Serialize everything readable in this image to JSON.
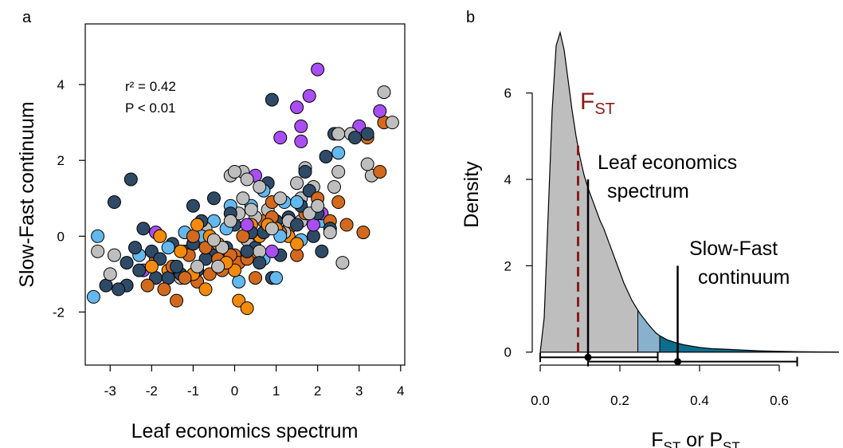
{
  "colors": {
    "dark_blue": "#2e4a67",
    "light_blue": "#63b8ee",
    "orange_dark": "#d2691e",
    "orange": "#f28a0c",
    "grey": "#bebebe",
    "purple": "#a84ef2",
    "density_grey": "#bebebe",
    "density_lightblue": "#8ab1cc",
    "density_teal": "#0e6c8c",
    "fst_red": "#8b1a1a"
  },
  "chart_data": [
    {
      "type": "scatter",
      "panel_label": "a",
      "xlabel": "Leaf economics spectrum",
      "ylabel": "Slow-Fast continuum",
      "xlim": [
        -3.6,
        4.1
      ],
      "ylim": [
        -3.4,
        5.6
      ],
      "xticks": [
        -3,
        -2,
        -1,
        0,
        1,
        2,
        3,
        4
      ],
      "yticks": [
        -2,
        0,
        2,
        4
      ],
      "annotations": [
        "r² = 0.42",
        "P < 0.01"
      ],
      "grid": false,
      "series": [
        {
          "color": "dark_blue",
          "points": [
            [
              -3.1,
              -1.3
            ],
            [
              -2.8,
              -1.4
            ],
            [
              -2.6,
              -1.3
            ],
            [
              -2.6,
              -0.7
            ],
            [
              -2.5,
              1.5
            ],
            [
              -2.9,
              0.9
            ],
            [
              -2.4,
              -0.3
            ],
            [
              -2.2,
              0.2
            ],
            [
              -1.9,
              -1.1
            ],
            [
              -1.8,
              -0.6
            ],
            [
              -1.6,
              -1.1
            ],
            [
              -1.5,
              -0.2
            ],
            [
              -1.4,
              -0.8
            ],
            [
              -1.2,
              -0.4
            ],
            [
              -1.0,
              -0.2
            ],
            [
              -1.0,
              0.8
            ],
            [
              -0.9,
              -0.9
            ],
            [
              -0.8,
              0.4
            ],
            [
              -0.7,
              -0.6
            ],
            [
              -0.5,
              -0.5
            ],
            [
              -0.5,
              1.0
            ],
            [
              -0.4,
              -0.8
            ],
            [
              -0.2,
              -0.3
            ],
            [
              -0.1,
              0.6
            ],
            [
              0.0,
              0.3
            ],
            [
              0.3,
              -0.4
            ],
            [
              0.4,
              0.1
            ],
            [
              0.5,
              -0.3
            ],
            [
              0.6,
              -0.7
            ],
            [
              0.7,
              0.1
            ],
            [
              0.8,
              1.4
            ],
            [
              0.9,
              3.6
            ],
            [
              0.9,
              -1.1
            ],
            [
              1.0,
              0.4
            ],
            [
              1.1,
              -0.5
            ],
            [
              1.3,
              0.5
            ],
            [
              1.5,
              0.3
            ],
            [
              1.6,
              0.8
            ],
            [
              1.7,
              1.7
            ],
            [
              1.8,
              1.2
            ],
            [
              2.0,
              0.6
            ],
            [
              2.1,
              -0.4
            ],
            [
              2.2,
              2.1
            ],
            [
              2.4,
              2.7
            ],
            [
              2.5,
              2.7
            ],
            [
              2.3,
              0.2
            ],
            [
              2.9,
              2.6
            ],
            [
              3.2,
              2.7
            ],
            [
              -1.3,
              -1.0
            ],
            [
              -0.3,
              -0.6
            ],
            [
              -2.3,
              -0.9
            ],
            [
              -2.0,
              -0.4
            ],
            [
              1.9,
              0.0
            ]
          ]
        },
        {
          "color": "light_blue",
          "points": [
            [
              -3.4,
              -1.6
            ],
            [
              -3.3,
              0.0
            ],
            [
              -2.3,
              -0.5
            ],
            [
              -1.6,
              -0.3
            ],
            [
              -1.2,
              0.1
            ],
            [
              -0.8,
              0.0
            ],
            [
              -0.5,
              0.4
            ],
            [
              -0.2,
              0.2
            ],
            [
              0.1,
              -1.2
            ],
            [
              0.4,
              0.8
            ],
            [
              0.7,
              1.2
            ],
            [
              0.7,
              -0.6
            ],
            [
              1.0,
              -1.1
            ],
            [
              1.1,
              0.0
            ],
            [
              1.2,
              0.9
            ],
            [
              1.5,
              0.9
            ],
            [
              1.6,
              -0.1
            ],
            [
              2.1,
              0.4
            ],
            [
              2.5,
              2.2
            ],
            [
              -0.1,
              0.8
            ]
          ]
        },
        {
          "color": "orange_dark",
          "points": [
            [
              -2.1,
              -1.3
            ],
            [
              -1.9,
              -0.6
            ],
            [
              -1.7,
              -1.4
            ],
            [
              -1.5,
              -0.8
            ],
            [
              -1.4,
              -1.7
            ],
            [
              -1.2,
              -1.1
            ],
            [
              -1.1,
              -0.5
            ],
            [
              -0.9,
              -1.2
            ],
            [
              -0.7,
              -0.3
            ],
            [
              -0.6,
              -1.0
            ],
            [
              -0.3,
              -0.9
            ],
            [
              -0.1,
              -0.5
            ],
            [
              0.1,
              -0.7
            ],
            [
              0.3,
              -0.6
            ],
            [
              0.5,
              -1.1
            ],
            [
              0.7,
              0.4
            ],
            [
              0.9,
              0.5
            ],
            [
              1.1,
              0.1
            ],
            [
              1.3,
              0.2
            ],
            [
              1.5,
              -0.5
            ],
            [
              1.7,
              0.6
            ],
            [
              2.0,
              1.0
            ],
            [
              2.3,
              0.4
            ],
            [
              2.5,
              0.9
            ],
            [
              2.7,
              0.3
            ],
            [
              3.1,
              0.1
            ],
            [
              3.2,
              2.6
            ],
            [
              3.5,
              1.7
            ],
            [
              3.6,
              3.0
            ],
            [
              0.0,
              -0.5
            ],
            [
              -0.4,
              -0.6
            ],
            [
              0.9,
              0.9
            ],
            [
              -1.0,
              0.0
            ],
            [
              0.2,
              0.0
            ]
          ]
        },
        {
          "color": "orange",
          "points": [
            [
              -2.0,
              -0.8
            ],
            [
              -1.8,
              0.0
            ],
            [
              -1.6,
              -0.9
            ],
            [
              -1.3,
              -0.4
            ],
            [
              -1.0,
              -1.0
            ],
            [
              -0.7,
              -1.4
            ],
            [
              -0.6,
              0.0
            ],
            [
              -0.4,
              -0.2
            ],
            [
              -0.2,
              -0.7
            ],
            [
              0.0,
              -0.9
            ],
            [
              0.1,
              -1.7
            ],
            [
              0.3,
              -1.9
            ],
            [
              0.4,
              0.3
            ],
            [
              0.5,
              -0.4
            ],
            [
              0.8,
              0.3
            ],
            [
              1.0,
              0.2
            ],
            [
              1.3,
              0.0
            ],
            [
              1.5,
              -0.2
            ],
            [
              0.6,
              0.0
            ],
            [
              -0.9,
              0.3
            ]
          ]
        },
        {
          "color": "grey",
          "points": [
            [
              -3.3,
              -0.4
            ],
            [
              -3.0,
              -1.0
            ],
            [
              -2.9,
              -0.5
            ],
            [
              -1.3,
              -1.1
            ],
            [
              -0.9,
              -0.8
            ],
            [
              -0.7,
              0.2
            ],
            [
              -0.5,
              -0.1
            ],
            [
              -0.3,
              -0.3
            ],
            [
              -0.1,
              1.6
            ],
            [
              -0.1,
              0.4
            ],
            [
              0.0,
              1.7
            ],
            [
              0.2,
              1.7
            ],
            [
              0.2,
              1.0
            ],
            [
              0.3,
              1.5
            ],
            [
              0.3,
              -0.1
            ],
            [
              0.4,
              0.7
            ],
            [
              0.5,
              0.5
            ],
            [
              0.6,
              1.3
            ],
            [
              0.6,
              -0.4
            ],
            [
              0.8,
              0.7
            ],
            [
              0.9,
              0.2
            ],
            [
              1.1,
              1.0
            ],
            [
              1.2,
              0.1
            ],
            [
              1.5,
              1.4
            ],
            [
              1.6,
              1.0
            ],
            [
              1.7,
              1.8
            ],
            [
              1.8,
              0.6
            ],
            [
              1.9,
              1.3
            ],
            [
              2.0,
              0.8
            ],
            [
              2.4,
              1.3
            ],
            [
              2.5,
              1.7
            ],
            [
              2.5,
              2.7
            ],
            [
              2.6,
              -0.7
            ],
            [
              2.8,
              2.7
            ],
            [
              3.2,
              1.9
            ],
            [
              3.3,
              1.6
            ],
            [
              3.6,
              3.8
            ],
            [
              3.8,
              3.0
            ],
            [
              0.1,
              0.6
            ],
            [
              -0.4,
              -0.8
            ],
            [
              1.3,
              0.4
            ],
            [
              1.6,
              0.4
            ],
            [
              2.3,
              0.1
            ]
          ]
        },
        {
          "color": "purple",
          "points": [
            [
              -2.2,
              -0.9
            ],
            [
              -1.9,
              0.1
            ],
            [
              0.3,
              0.3
            ],
            [
              0.5,
              1.6
            ],
            [
              0.9,
              -0.4
            ],
            [
              1.1,
              2.6
            ],
            [
              1.5,
              3.4
            ],
            [
              1.6,
              2.9
            ],
            [
              1.6,
              2.5
            ],
            [
              1.8,
              3.7
            ],
            [
              2.0,
              4.4
            ],
            [
              2.1,
              0.6
            ],
            [
              3.0,
              2.9
            ],
            [
              3.5,
              3.3
            ],
            [
              1.9,
              0.3
            ]
          ]
        }
      ]
    },
    {
      "type": "area",
      "panel_label": "b",
      "xlabel_main": "F",
      "xlabel_sub1": "ST",
      "xlabel_mid": " or P",
      "xlabel_sub2": "ST",
      "ylabel": "Density",
      "xlim": [
        -0.02,
        0.76
      ],
      "ylim": [
        -0.3,
        7.6
      ],
      "xticks": [
        "0.0",
        "0.2",
        "0.4",
        "0.6"
      ],
      "xtick_values": [
        0.0,
        0.2,
        0.4,
        0.6
      ],
      "yticks": [
        0,
        2,
        4,
        6
      ],
      "density_x": [
        0.0,
        0.01,
        0.02,
        0.03,
        0.04,
        0.05,
        0.06,
        0.07,
        0.08,
        0.09,
        0.1,
        0.11,
        0.12,
        0.13,
        0.14,
        0.15,
        0.16,
        0.17,
        0.18,
        0.19,
        0.2,
        0.21,
        0.22,
        0.23,
        0.24,
        0.25,
        0.26,
        0.27,
        0.28,
        0.29,
        0.3,
        0.32,
        0.34,
        0.36,
        0.38,
        0.4,
        0.43,
        0.46,
        0.5,
        0.55,
        0.6,
        0.65,
        0.7,
        0.75
      ],
      "density_y": [
        0.0,
        0.8,
        3.2,
        5.6,
        7.1,
        7.4,
        7.0,
        6.3,
        5.6,
        5.0,
        4.5,
        4.1,
        3.8,
        3.55,
        3.3,
        3.05,
        2.85,
        2.6,
        2.35,
        2.1,
        1.85,
        1.6,
        1.4,
        1.2,
        1.05,
        0.9,
        0.78,
        0.66,
        0.55,
        0.45,
        0.38,
        0.28,
        0.22,
        0.17,
        0.14,
        0.11,
        0.08,
        0.07,
        0.05,
        0.03,
        0.02,
        0.01,
        0.005,
        0.002
      ],
      "region_breaks": [
        0.245,
        0.3
      ],
      "region_colors": [
        "density_grey",
        "density_lightblue",
        "density_teal"
      ],
      "fst": {
        "label_main": "F",
        "label_sub": "ST",
        "x": 0.095,
        "y_top": 4.9,
        "color": "fst_red"
      },
      "markers": [
        {
          "label_line1": "Leaf economics",
          "label_line2": "spectrum",
          "x": 0.12,
          "y_top": 4.0,
          "ci": [
            0.0,
            0.295
          ],
          "ci_y": -0.12
        },
        {
          "label_line1": "Slow-Fast",
          "label_line2": "continuum",
          "x": 0.345,
          "y_top": 2.0,
          "ci": [
            0.12,
            0.645
          ],
          "ci_y": -0.22
        }
      ]
    }
  ]
}
